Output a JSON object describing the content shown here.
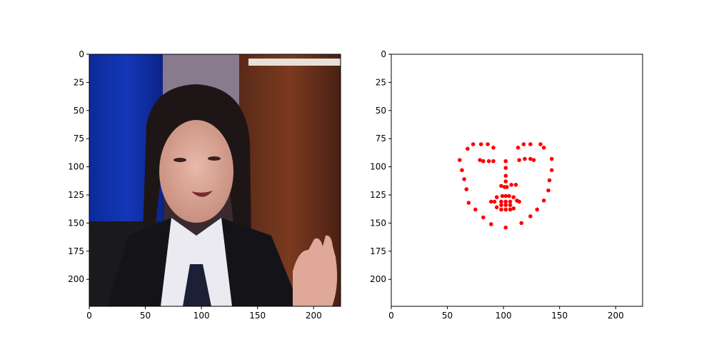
{
  "chart_data": [
    {
      "type": "image",
      "image_description": "Video frame of a young woman with dark hair wearing a white shirt, dark tie and black jacket; blue curtain left, brown wood panel right, raised hand at lower right",
      "xlim": [
        0,
        224
      ],
      "ylim": [
        224,
        0
      ],
      "xticks": [
        0,
        50,
        100,
        150,
        200
      ],
      "yticks": [
        0,
        25,
        50,
        75,
        100,
        125,
        150,
        175,
        200
      ],
      "xtick_labels": [
        "0",
        "50",
        "100",
        "150",
        "200"
      ],
      "ytick_labels": [
        "0",
        "25",
        "50",
        "75",
        "100",
        "125",
        "150",
        "175",
        "200"
      ]
    },
    {
      "type": "scatter",
      "xlim": [
        0,
        224
      ],
      "ylim": [
        224,
        0
      ],
      "xticks": [
        0,
        50,
        100,
        150,
        200
      ],
      "yticks": [
        0,
        25,
        50,
        75,
        100,
        125,
        150,
        175,
        200
      ],
      "xtick_labels": [
        "0",
        "50",
        "100",
        "150",
        "200"
      ],
      "ytick_labels": [
        "0",
        "25",
        "50",
        "75",
        "100",
        "125",
        "150",
        "175",
        "200"
      ],
      "marker_color": "#ff0000",
      "points": [
        [
          61,
          94
        ],
        [
          63,
          103
        ],
        [
          65,
          111
        ],
        [
          67,
          120
        ],
        [
          69,
          132
        ],
        [
          75,
          138
        ],
        [
          82,
          145
        ],
        [
          89,
          151
        ],
        [
          102,
          154
        ],
        [
          116,
          150
        ],
        [
          124,
          144
        ],
        [
          130,
          138
        ],
        [
          136,
          130
        ],
        [
          140,
          121
        ],
        [
          141,
          112
        ],
        [
          143,
          103
        ],
        [
          143,
          93
        ],
        [
          68,
          84
        ],
        [
          73,
          80
        ],
        [
          80,
          80
        ],
        [
          86,
          80
        ],
        [
          91,
          83
        ],
        [
          113,
          83
        ],
        [
          118,
          80
        ],
        [
          124,
          80
        ],
        [
          133,
          80
        ],
        [
          136,
          83
        ],
        [
          102,
          95
        ],
        [
          102,
          101
        ],
        [
          102,
          108
        ],
        [
          102,
          113
        ],
        [
          98,
          117
        ],
        [
          101,
          118
        ],
        [
          103,
          118
        ],
        [
          107,
          116
        ],
        [
          111,
          116
        ],
        [
          79,
          94
        ],
        [
          82,
          95
        ],
        [
          87,
          95
        ],
        [
          91,
          95
        ],
        [
          114,
          94
        ],
        [
          119,
          93
        ],
        [
          124,
          93
        ],
        [
          127,
          94
        ],
        [
          89,
          131
        ],
        [
          94,
          127
        ],
        [
          99,
          126
        ],
        [
          102,
          126
        ],
        [
          105,
          126
        ],
        [
          109,
          127
        ],
        [
          114,
          131
        ],
        [
          109,
          137
        ],
        [
          106,
          138
        ],
        [
          102,
          138
        ],
        [
          98,
          138
        ],
        [
          94,
          136
        ],
        [
          92,
          131
        ],
        [
          98,
          131
        ],
        [
          102,
          131
        ],
        [
          106,
          131
        ],
        [
          112,
          130
        ],
        [
          106,
          134
        ],
        [
          102,
          134
        ],
        [
          98,
          134
        ]
      ]
    }
  ]
}
